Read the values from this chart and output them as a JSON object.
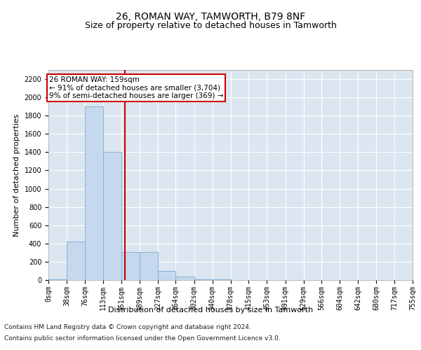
{
  "title": "26, ROMAN WAY, TAMWORTH, B79 8NF",
  "subtitle": "Size of property relative to detached houses in Tamworth",
  "xlabel": "Distribution of detached houses by size in Tamworth",
  "ylabel": "Number of detached properties",
  "footer_line1": "Contains HM Land Registry data © Crown copyright and database right 2024.",
  "footer_line2": "Contains public sector information licensed under the Open Government Licence v3.0.",
  "annotation_line1": "26 ROMAN WAY: 159sqm",
  "annotation_line2": "← 91% of detached houses are smaller (3,704)",
  "annotation_line3": "9% of semi-detached houses are larger (369) →",
  "property_size": 159,
  "bin_edges": [
    0,
    38,
    76,
    113,
    151,
    189,
    227,
    264,
    302,
    340,
    378,
    415,
    453,
    491,
    529,
    566,
    604,
    642,
    680,
    717,
    755
  ],
  "bin_labels": [
    "0sqm",
    "38sqm",
    "76sqm",
    "113sqm",
    "151sqm",
    "189sqm",
    "227sqm",
    "264sqm",
    "302sqm",
    "340sqm",
    "378sqm",
    "415sqm",
    "453sqm",
    "491sqm",
    "529sqm",
    "566sqm",
    "604sqm",
    "642sqm",
    "680sqm",
    "717sqm",
    "755sqm"
  ],
  "bar_heights": [
    8,
    420,
    1900,
    1400,
    310,
    310,
    100,
    40,
    10,
    5,
    2,
    1,
    1,
    0,
    0,
    0,
    0,
    0,
    0,
    0
  ],
  "bar_color": "#c5d8ee",
  "bar_edge_color": "#7aadd4",
  "vline_color": "#cc0000",
  "vline_x": 159,
  "annotation_box_color": "#cc0000",
  "ylim": [
    0,
    2300
  ],
  "yticks": [
    0,
    200,
    400,
    600,
    800,
    1000,
    1200,
    1400,
    1600,
    1800,
    2000,
    2200
  ],
  "background_color": "#dce6f1",
  "grid_color": "#ffffff",
  "title_fontsize": 10,
  "subtitle_fontsize": 9,
  "label_fontsize": 8,
  "tick_fontsize": 7,
  "annotation_fontsize": 7.5,
  "footer_fontsize": 6.5
}
